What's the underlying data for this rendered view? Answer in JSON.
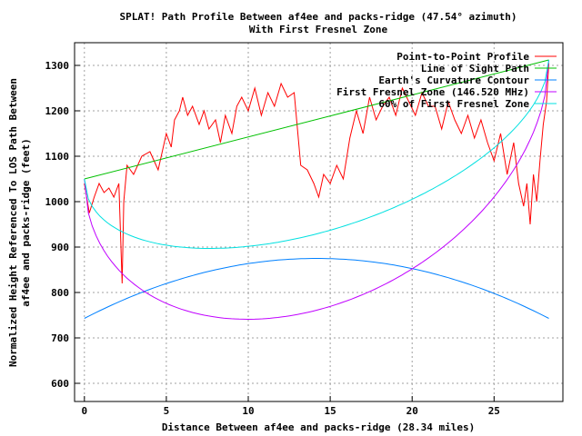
{
  "chart_data": {
    "type": "line",
    "title": "SPLAT! Path Profile Between af4ee and packs-ridge (47.54° azimuth)",
    "subtitle": "With First Fresnel Zone",
    "xlabel": "Distance Between af4ee and packs-ridge (28.34 miles)",
    "ylabel_line1": "Normalized Height Referenced To LOS Path Between",
    "ylabel_line2": "af4ee and packs-ridge (feet)",
    "xlim": [
      -0.6,
      29.2
    ],
    "ylim": [
      560,
      1350
    ],
    "x_ticks": [
      0,
      5,
      10,
      15,
      20,
      25
    ],
    "y_ticks": [
      600,
      700,
      800,
      900,
      1000,
      1100,
      1200,
      1300
    ],
    "grid": true,
    "legend_position": "top-right",
    "colors": {
      "profile": "#ff0000",
      "los": "#00c000",
      "curvature": "#0080ff",
      "fresnel": "#c000ff",
      "fresnel60": "#00e0e0"
    },
    "series": [
      {
        "name": "Point-to-Point Profile",
        "color": "#ff0000",
        "x": [
          0,
          0.3,
          0.6,
          0.9,
          1.2,
          1.5,
          1.8,
          2.1,
          2.3,
          2.4,
          2.6,
          3.0,
          3.5,
          4.0,
          4.5,
          5.0,
          5.3,
          5.5,
          5.8,
          6.0,
          6.3,
          6.6,
          7.0,
          7.3,
          7.6,
          8.0,
          8.3,
          8.6,
          9.0,
          9.3,
          9.6,
          10.0,
          10.4,
          10.8,
          11.2,
          11.6,
          12.0,
          12.4,
          12.8,
          13.2,
          13.6,
          14.0,
          14.3,
          14.6,
          15.0,
          15.4,
          15.8,
          16.2,
          16.6,
          17.0,
          17.4,
          17.8,
          18.2,
          18.6,
          19.0,
          19.4,
          19.8,
          20.2,
          20.6,
          21.0,
          21.4,
          21.8,
          22.2,
          22.6,
          23.0,
          23.4,
          23.8,
          24.2,
          24.6,
          25.0,
          25.4,
          25.8,
          26.2,
          26.5,
          26.8,
          27.0,
          27.2,
          27.4,
          27.6,
          27.8,
          28.0,
          28.2,
          28.34
        ],
        "values": [
          1040,
          975,
          1010,
          1040,
          1020,
          1030,
          1010,
          1040,
          820,
          1000,
          1080,
          1060,
          1100,
          1110,
          1070,
          1150,
          1120,
          1180,
          1200,
          1230,
          1190,
          1210,
          1170,
          1200,
          1160,
          1180,
          1130,
          1190,
          1150,
          1210,
          1230,
          1200,
          1250,
          1190,
          1240,
          1210,
          1260,
          1230,
          1240,
          1080,
          1070,
          1040,
          1010,
          1060,
          1040,
          1080,
          1050,
          1140,
          1200,
          1150,
          1230,
          1180,
          1210,
          1230,
          1190,
          1250,
          1220,
          1190,
          1240,
          1210,
          1210,
          1160,
          1220,
          1180,
          1150,
          1190,
          1140,
          1180,
          1130,
          1090,
          1150,
          1060,
          1130,
          1040,
          990,
          1040,
          950,
          1060,
          1000,
          1090,
          1170,
          1220,
          1305
        ]
      },
      {
        "name": "Line of Sight Path",
        "color": "#00c000",
        "x": [
          0,
          28.34
        ],
        "values": [
          1050,
          1312
        ]
      },
      {
        "name": "Earth's Curvature Contour",
        "color": "#0080ff",
        "curve": "earth",
        "base": 743,
        "peak": 875
      },
      {
        "name": "First Fresnel Zone (146.520 MHz)",
        "color": "#c000ff",
        "curve": "fresnel",
        "fraction": 1.0,
        "radius": 420
      },
      {
        "name": "60% of First Fresnel Zone",
        "color": "#00e0e0",
        "curve": "fresnel",
        "fraction": 0.6,
        "radius": 420
      }
    ]
  }
}
